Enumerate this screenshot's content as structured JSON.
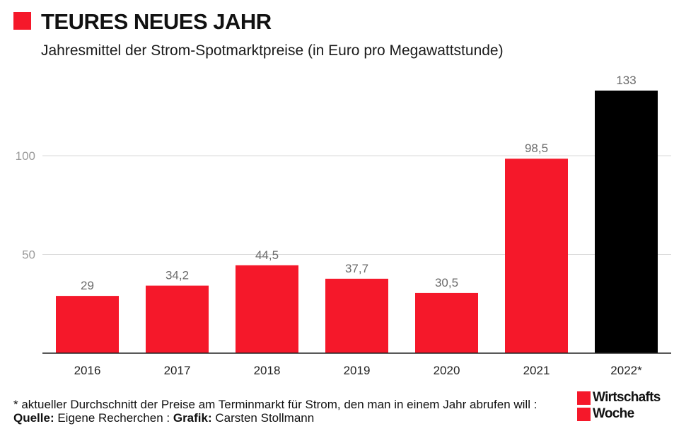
{
  "header": {
    "title": "TEURES NEUES JAHR",
    "subtitle": "Jahresmittel der Strom-Spotmarktpreise (in Euro pro Megawattstunde)"
  },
  "chart_data": {
    "type": "bar",
    "title": "TEURES NEUES JAHR",
    "subtitle": "Jahresmittel der Strom-Spotmarktpreise (in Euro pro Megawattstunde)",
    "categories": [
      "2016",
      "2017",
      "2018",
      "2019",
      "2020",
      "2021",
      "2022*"
    ],
    "values": [
      29,
      34.2,
      44.5,
      37.7,
      30.5,
      98.5,
      133
    ],
    "value_labels": [
      "29",
      "34,2",
      "44,5",
      "37,7",
      "30,5",
      "98,5",
      "133"
    ],
    "bar_colors": [
      "#f5182a",
      "#f5182a",
      "#f5182a",
      "#f5182a",
      "#f5182a",
      "#f5182a",
      "#000000"
    ],
    "yticks": [
      50,
      100
    ],
    "ytick_labels": [
      "50",
      "100"
    ],
    "ylim": [
      0,
      133
    ],
    "grid": true,
    "xlabel": "",
    "ylabel": ""
  },
  "footer": {
    "note": "* aktueller Durchschnitt der Preise am Terminmarkt für Strom, den man in einem Jahr abrufen will : ",
    "source_label": "Quelle:",
    "source": " Eigene Recherchen : ",
    "graphic_label": "Grafik:",
    "graphic": " Carsten Stollmann"
  },
  "brand": {
    "line1": "Wirtschafts",
    "line2": "Woche"
  },
  "colors": {
    "accent": "#f5182a",
    "highlight": "#000000",
    "grid": "#d9d9d9",
    "tick_text": "#9a9a9a",
    "value_text": "#6b6b6b"
  }
}
